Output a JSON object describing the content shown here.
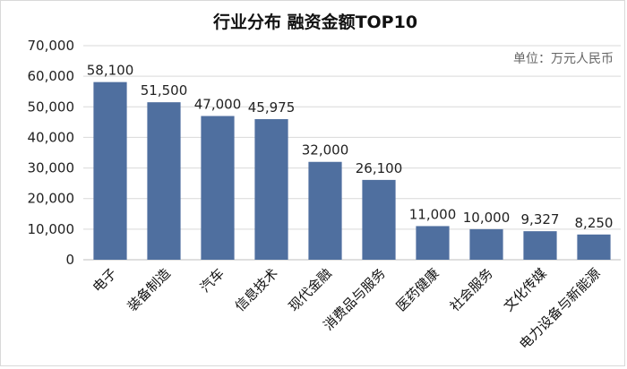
{
  "chart_data": {
    "type": "bar",
    "title": "行业分布 融资金额TOP10",
    "unit_label": "单位：万元人民币",
    "categories": [
      "电子",
      "装备制造",
      "汽车",
      "信息技术",
      "现代金融",
      "消费品与服务",
      "医药健康",
      "社会服务",
      "文化传媒",
      "电力设备与新能源"
    ],
    "values": [
      58100,
      51500,
      47000,
      45975,
      32000,
      26100,
      11000,
      10000,
      9327,
      8250
    ],
    "data_labels": [
      "58,100",
      "51,500",
      "47,000",
      "45,975",
      "32,000",
      "26,100",
      "11,000",
      "10,000",
      "9,327",
      "8,250"
    ],
    "y_ticks": [
      "0",
      "10,000",
      "20,000",
      "30,000",
      "40,000",
      "50,000",
      "60,000",
      "70,000"
    ],
    "ylim": [
      0,
      70000
    ],
    "grid": true,
    "colors": {
      "bar": "#4f6f9f",
      "grid": "#d9d9d9"
    }
  }
}
